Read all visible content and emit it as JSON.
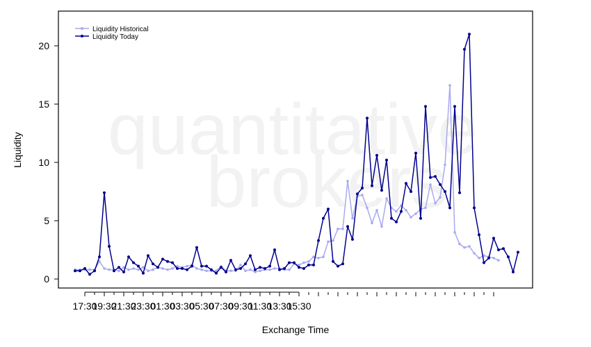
{
  "watermark": {
    "line1": "quantitative",
    "line2": "brokers"
  },
  "chart_data": {
    "type": "line",
    "xlabel": "Exchange Time",
    "ylabel": "Liquidity",
    "ylim": [
      -1,
      23.5
    ],
    "yticks": [
      0,
      5,
      10,
      15,
      20
    ],
    "x_tick_labels": [
      "17:30",
      "19:30",
      "21:30",
      "23:30",
      "01:30",
      "03:30",
      "05:30",
      "07:30",
      "09:30",
      "11:30",
      "13:30",
      "15:30"
    ],
    "x_tick_start_index": 2,
    "x_tick_label_every": 4,
    "x_minor_tick_every": 2,
    "x_interval_minutes": 30,
    "x_start": "16:30",
    "legend_position": "top-left",
    "colors": {
      "Liquidity Historical": "#a9a9f0",
      "Liquidity Today": "#00008b"
    },
    "series": [
      {
        "name": "Liquidity Historical",
        "values": [
          0.8,
          0.8,
          0.8,
          0.8,
          0.8,
          1.5,
          0.9,
          0.8,
          0.8,
          0.7,
          1.0,
          0.8,
          0.9,
          0.8,
          1.0,
          0.7,
          0.8,
          1.0,
          0.9,
          0.8,
          0.9,
          1.1,
          1.0,
          1.1,
          1.2,
          0.9,
          0.8,
          0.7,
          0.7,
          0.7,
          1.1,
          0.7,
          0.7,
          0.7,
          1.2,
          0.7,
          0.8,
          0.6,
          0.7,
          0.8,
          0.8,
          0.9,
          0.9,
          0.8,
          0.8,
          1.3,
          1.2,
          1.4,
          1.5,
          1.9,
          1.8,
          1.9,
          3.2,
          3.3,
          4.3,
          4.3,
          8.4,
          5.2,
          7.1,
          7.2,
          6.1,
          4.8,
          5.9,
          4.5,
          6.9,
          6.1,
          5.8,
          6.3,
          5.9,
          5.3,
          5.6,
          6.0,
          6.1,
          8.1,
          6.5,
          7.0,
          9.8,
          16.6,
          4.0,
          3.0,
          2.7,
          2.8,
          2.2,
          1.8,
          2.0,
          1.9,
          1.8,
          1.6
        ]
      },
      {
        "name": "Liquidity Today",
        "values": [
          0.7,
          0.7,
          0.9,
          0.4,
          0.7,
          1.9,
          7.4,
          2.8,
          0.7,
          1.0,
          0.6,
          1.9,
          1.4,
          1.1,
          0.5,
          2.0,
          1.3,
          1.0,
          1.7,
          1.5,
          1.4,
          0.9,
          0.9,
          0.8,
          1.1,
          2.7,
          1.1,
          1.1,
          0.8,
          0.5,
          1.0,
          0.6,
          1.6,
          0.8,
          0.9,
          1.3,
          2.0,
          0.8,
          1.0,
          0.9,
          1.1,
          2.5,
          0.8,
          0.9,
          1.4,
          1.4,
          1.0,
          0.9,
          1.2,
          1.2,
          3.3,
          5.2,
          6.0,
          1.5,
          1.1,
          1.3,
          4.5,
          3.4,
          7.3,
          7.8,
          13.8,
          8.0,
          10.6,
          7.6,
          10.2,
          5.2,
          4.9,
          5.8,
          8.2,
          7.5,
          10.8,
          5.2,
          14.8,
          8.7,
          8.8,
          8.1,
          7.5,
          6.1,
          14.8,
          7.4,
          19.7,
          21.0,
          6.1,
          3.8,
          1.4,
          1.8,
          3.5,
          2.5,
          2.6,
          1.9,
          0.6,
          2.3
        ]
      }
    ]
  }
}
